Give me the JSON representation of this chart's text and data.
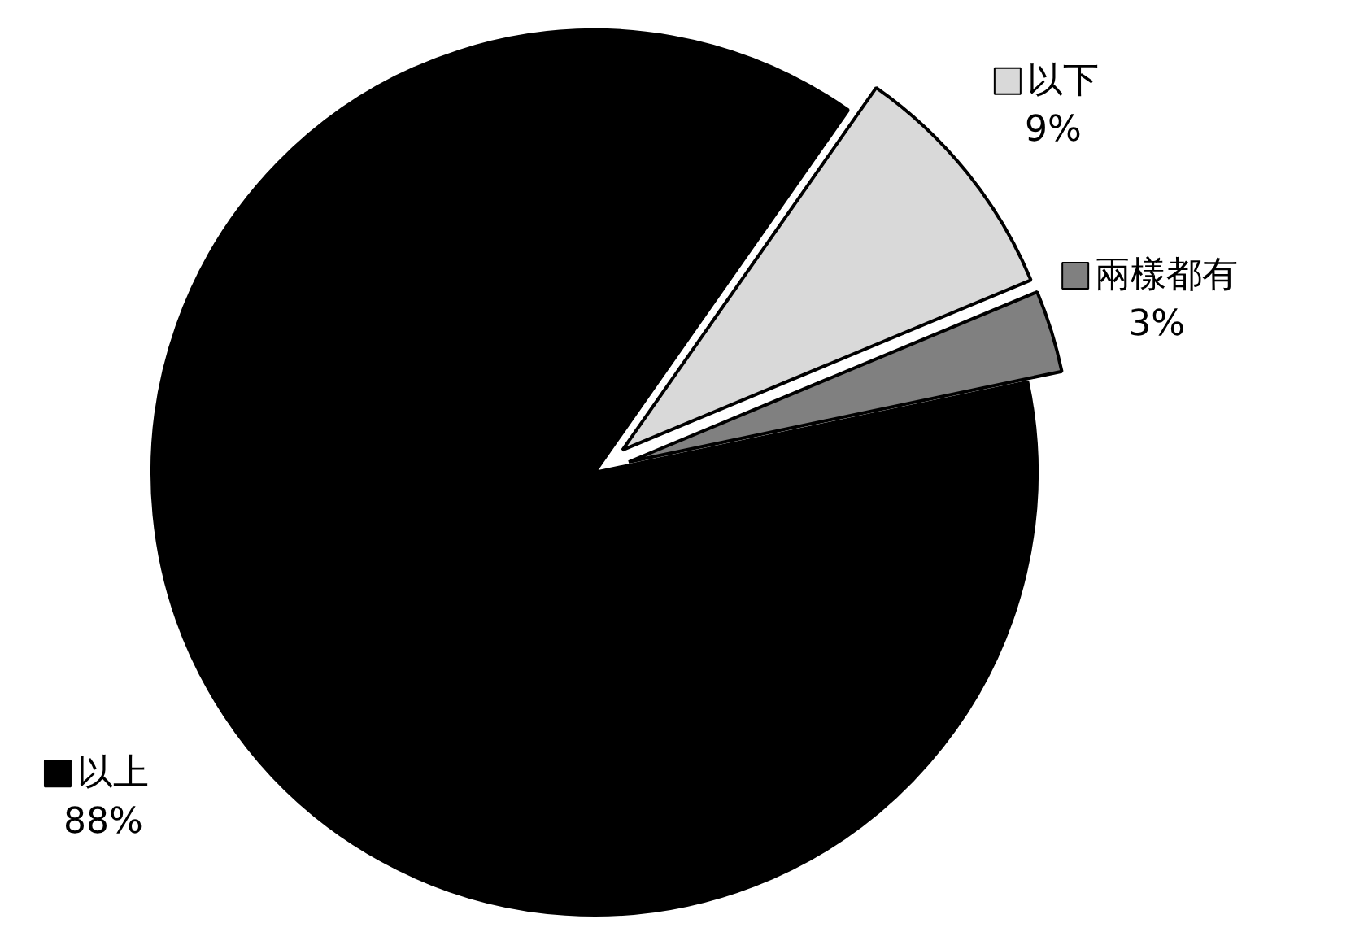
{
  "chart_data": {
    "type": "pie",
    "categories": [
      "以下",
      "兩樣都有",
      "以上"
    ],
    "values": [
      9,
      3,
      88
    ],
    "colors": [
      "#d9d9d9",
      "#808080",
      "#000000"
    ],
    "value_labels": [
      "9%",
      "3%",
      "88%"
    ],
    "legend": "right"
  }
}
